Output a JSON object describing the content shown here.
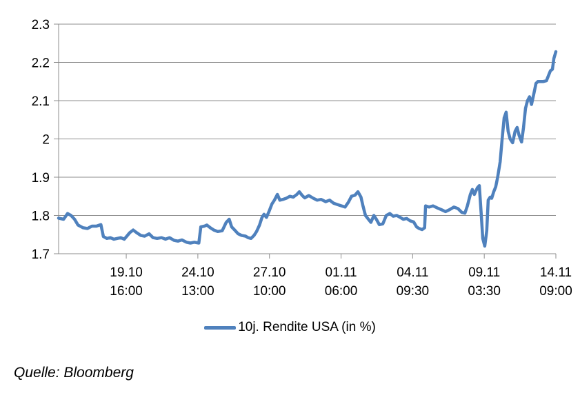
{
  "chart_data": {
    "type": "line",
    "title": "",
    "xlabel": "",
    "ylabel": "",
    "grid": true,
    "legend_position": "bottom-center",
    "ylim": [
      1.7,
      2.3
    ],
    "yticks": [
      {
        "label": "2.3",
        "value": 2.3
      },
      {
        "label": "2.2",
        "value": 2.2
      },
      {
        "label": "2.1",
        "value": 2.1
      },
      {
        "label": "2",
        "value": 2.0
      },
      {
        "label": "1.9",
        "value": 1.9
      },
      {
        "label": "1.8",
        "value": 1.8
      },
      {
        "label": "1.7",
        "value": 1.7
      }
    ],
    "xticks": [
      {
        "date": "19.10",
        "time": "16:00",
        "f": 0.136
      },
      {
        "date": "24.10",
        "time": "13:00",
        "f": 0.28
      },
      {
        "date": "27.10",
        "time": "10:00",
        "f": 0.424
      },
      {
        "date": "01.11",
        "time": "06:00",
        "f": 0.568
      },
      {
        "date": "04.11",
        "time": "09:30",
        "f": 0.712
      },
      {
        "date": "09.11",
        "time": "03:30",
        "f": 0.856
      },
      {
        "date": "14.11",
        "time": "09:00",
        "f": 1.0
      }
    ],
    "colors": {
      "grid": "#8C8C8C",
      "axis": "#8C8C8C",
      "text": "#000000"
    },
    "series": [
      {
        "name": "10j. Rendite USA (in %)",
        "color": "#4F81BD",
        "points": [
          [
            0.0,
            1.793
          ],
          [
            0.01,
            1.79
          ],
          [
            0.018,
            1.805
          ],
          [
            0.025,
            1.8
          ],
          [
            0.032,
            1.79
          ],
          [
            0.039,
            1.775
          ],
          [
            0.049,
            1.768
          ],
          [
            0.058,
            1.766
          ],
          [
            0.067,
            1.772
          ],
          [
            0.076,
            1.772
          ],
          [
            0.085,
            1.776
          ],
          [
            0.09,
            1.745
          ],
          [
            0.097,
            1.74
          ],
          [
            0.104,
            1.742
          ],
          [
            0.111,
            1.738
          ],
          [
            0.118,
            1.74
          ],
          [
            0.125,
            1.742
          ],
          [
            0.132,
            1.738
          ],
          [
            0.143,
            1.755
          ],
          [
            0.15,
            1.762
          ],
          [
            0.157,
            1.755
          ],
          [
            0.165,
            1.748
          ],
          [
            0.173,
            1.746
          ],
          [
            0.182,
            1.752
          ],
          [
            0.19,
            1.742
          ],
          [
            0.198,
            1.74
          ],
          [
            0.207,
            1.742
          ],
          [
            0.215,
            1.738
          ],
          [
            0.223,
            1.742
          ],
          [
            0.232,
            1.735
          ],
          [
            0.24,
            1.733
          ],
          [
            0.248,
            1.736
          ],
          [
            0.257,
            1.73
          ],
          [
            0.265,
            1.728
          ],
          [
            0.273,
            1.73
          ],
          [
            0.282,
            1.728
          ],
          [
            0.286,
            1.77
          ],
          [
            0.293,
            1.772
          ],
          [
            0.298,
            1.775
          ],
          [
            0.305,
            1.768
          ],
          [
            0.312,
            1.762
          ],
          [
            0.32,
            1.758
          ],
          [
            0.329,
            1.76
          ],
          [
            0.337,
            1.782
          ],
          [
            0.343,
            1.79
          ],
          [
            0.348,
            1.77
          ],
          [
            0.354,
            1.762
          ],
          [
            0.361,
            1.752
          ],
          [
            0.368,
            1.748
          ],
          [
            0.376,
            1.746
          ],
          [
            0.381,
            1.742
          ],
          [
            0.387,
            1.74
          ],
          [
            0.393,
            1.748
          ],
          [
            0.398,
            1.758
          ],
          [
            0.404,
            1.775
          ],
          [
            0.409,
            1.795
          ],
          [
            0.413,
            1.803
          ],
          [
            0.418,
            1.795
          ],
          [
            0.423,
            1.81
          ],
          [
            0.429,
            1.83
          ],
          [
            0.434,
            1.84
          ],
          [
            0.44,
            1.855
          ],
          [
            0.445,
            1.84
          ],
          [
            0.451,
            1.842
          ],
          [
            0.458,
            1.845
          ],
          [
            0.465,
            1.85
          ],
          [
            0.472,
            1.848
          ],
          [
            0.479,
            1.855
          ],
          [
            0.484,
            1.862
          ],
          [
            0.49,
            1.852
          ],
          [
            0.495,
            1.846
          ],
          [
            0.503,
            1.852
          ],
          [
            0.512,
            1.845
          ],
          [
            0.52,
            1.84
          ],
          [
            0.528,
            1.842
          ],
          [
            0.537,
            1.836
          ],
          [
            0.545,
            1.84
          ],
          [
            0.553,
            1.832
          ],
          [
            0.562,
            1.828
          ],
          [
            0.569,
            1.825
          ],
          [
            0.576,
            1.822
          ],
          [
            0.583,
            1.835
          ],
          [
            0.589,
            1.85
          ],
          [
            0.596,
            1.853
          ],
          [
            0.602,
            1.862
          ],
          [
            0.608,
            1.848
          ],
          [
            0.612,
            1.825
          ],
          [
            0.617,
            1.8
          ],
          [
            0.623,
            1.79
          ],
          [
            0.628,
            1.782
          ],
          [
            0.634,
            1.8
          ],
          [
            0.639,
            1.79
          ],
          [
            0.645,
            1.776
          ],
          [
            0.652,
            1.778
          ],
          [
            0.659,
            1.8
          ],
          [
            0.666,
            1.805
          ],
          [
            0.673,
            1.798
          ],
          [
            0.68,
            1.8
          ],
          [
            0.687,
            1.795
          ],
          [
            0.693,
            1.79
          ],
          [
            0.7,
            1.792
          ],
          [
            0.707,
            1.786
          ],
          [
            0.714,
            1.783
          ],
          [
            0.72,
            1.77
          ],
          [
            0.725,
            1.766
          ],
          [
            0.731,
            1.763
          ],
          [
            0.736,
            1.768
          ],
          [
            0.738,
            1.825
          ],
          [
            0.745,
            1.822
          ],
          [
            0.753,
            1.825
          ],
          [
            0.761,
            1.82
          ],
          [
            0.77,
            1.815
          ],
          [
            0.778,
            1.81
          ],
          [
            0.786,
            1.815
          ],
          [
            0.795,
            1.822
          ],
          [
            0.803,
            1.818
          ],
          [
            0.811,
            1.808
          ],
          [
            0.817,
            1.806
          ],
          [
            0.822,
            1.825
          ],
          [
            0.828,
            1.855
          ],
          [
            0.832,
            1.868
          ],
          [
            0.836,
            1.855
          ],
          [
            0.842,
            1.872
          ],
          [
            0.846,
            1.878
          ],
          [
            0.85,
            1.8
          ],
          [
            0.853,
            1.74
          ],
          [
            0.857,
            1.72
          ],
          [
            0.861,
            1.76
          ],
          [
            0.864,
            1.84
          ],
          [
            0.868,
            1.848
          ],
          [
            0.871,
            1.845
          ],
          [
            0.875,
            1.862
          ],
          [
            0.879,
            1.875
          ],
          [
            0.883,
            1.9
          ],
          [
            0.888,
            1.94
          ],
          [
            0.892,
            2.0
          ],
          [
            0.896,
            2.055
          ],
          [
            0.9,
            2.07
          ],
          [
            0.904,
            2.02
          ],
          [
            0.908,
            2.0
          ],
          [
            0.913,
            1.99
          ],
          [
            0.918,
            2.02
          ],
          [
            0.922,
            2.03
          ],
          [
            0.926,
            2.01
          ],
          [
            0.931,
            1.992
          ],
          [
            0.935,
            2.03
          ],
          [
            0.939,
            2.08
          ],
          [
            0.943,
            2.1
          ],
          [
            0.947,
            2.11
          ],
          [
            0.951,
            2.09
          ],
          [
            0.956,
            2.12
          ],
          [
            0.96,
            2.145
          ],
          [
            0.964,
            2.15
          ],
          [
            0.969,
            2.15
          ],
          [
            0.975,
            2.15
          ],
          [
            0.981,
            2.152
          ],
          [
            0.985,
            2.165
          ],
          [
            0.989,
            2.178
          ],
          [
            0.993,
            2.182
          ],
          [
            0.996,
            2.21
          ],
          [
            1.0,
            2.228
          ]
        ]
      }
    ]
  },
  "source_note": "Quelle: Bloomberg"
}
